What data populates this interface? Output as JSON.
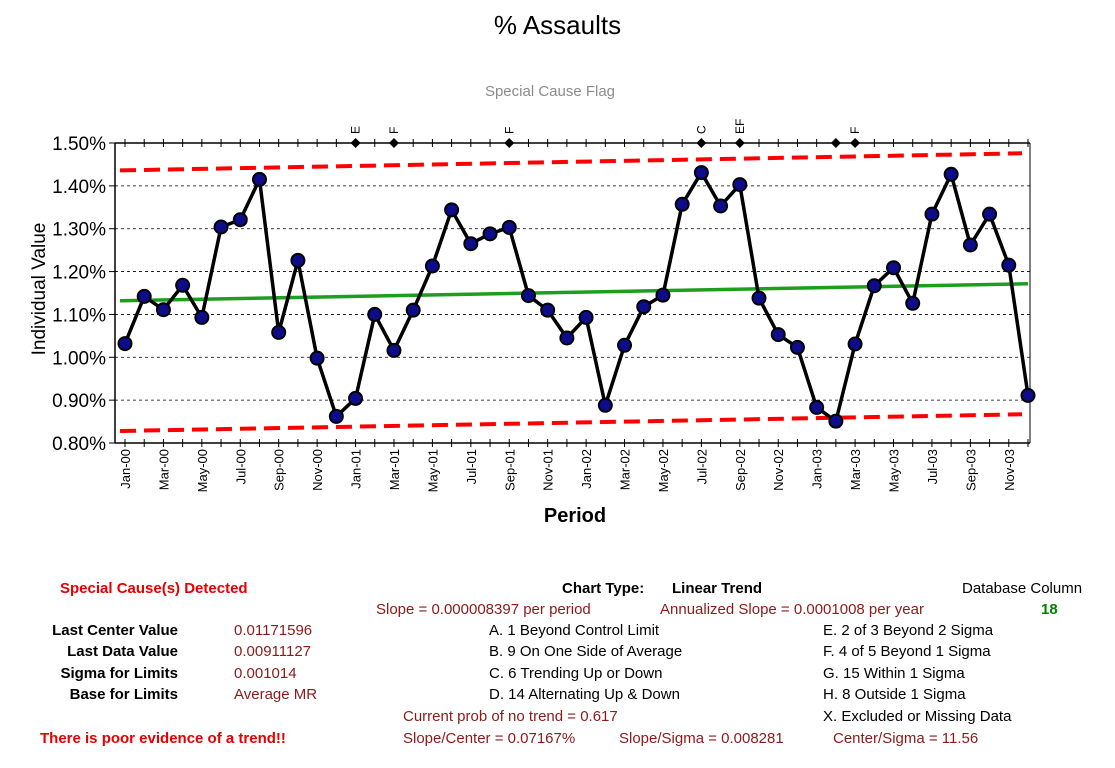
{
  "chart_data": {
    "type": "line",
    "title": "% Assaults",
    "subtitle": "Special Cause Flag",
    "xlabel": "Period",
    "ylabel": "Individual Value",
    "ylim": [
      0.008,
      0.015
    ],
    "yticks": [
      "0.80%",
      "0.90%",
      "1.00%",
      "1.10%",
      "1.20%",
      "1.30%",
      "1.40%",
      "1.50%"
    ],
    "y_tick_values": [
      0.008,
      0.009,
      0.01,
      0.011,
      0.012,
      0.013,
      0.014,
      0.015
    ],
    "x_tick_labels": [
      "Jan-00",
      "Mar-00",
      "May-00",
      "Jul-00",
      "Sep-00",
      "Nov-00",
      "Jan-01",
      "Mar-01",
      "May-01",
      "Jul-01",
      "Sep-01",
      "Nov-01",
      "Jan-02",
      "Mar-02",
      "May-02",
      "Jul-02",
      "Sep-02",
      "Nov-02",
      "Jan-03",
      "Mar-03",
      "May-03",
      "Jul-03",
      "Sep-03",
      "Nov-03"
    ],
    "grid": "horizontal dashed",
    "series": [
      {
        "name": "Individual Value",
        "color": "#000000",
        "marker_color": "#0d0d8c",
        "values": [
          0.01032,
          0.01142,
          0.01111,
          0.01168,
          0.01093,
          0.01304,
          0.01321,
          0.01415,
          0.01058,
          0.01226,
          0.00998,
          0.00862,
          0.00904,
          0.011,
          0.01016,
          0.0111,
          0.01213,
          0.01344,
          0.01265,
          0.01288,
          0.01303,
          0.01144,
          0.0111,
          0.01045,
          0.01093,
          0.00888,
          0.01028,
          0.01118,
          0.01145,
          0.01357,
          0.01431,
          0.01353,
          0.01403,
          0.01138,
          0.01053,
          0.01023,
          0.00883,
          0.00851,
          0.01031,
          0.01167,
          0.01209,
          0.01126,
          0.01334,
          0.01427,
          0.01262,
          0.01334,
          0.01215,
          0.00911
        ]
      },
      {
        "name": "Center Line",
        "color": "#1e9e1e",
        "start": 0.01132,
        "end": 0.01171596
      },
      {
        "name": "Upper Control Limit",
        "color": "#ff0000",
        "start": 0.01436,
        "end": 0.01476
      },
      {
        "name": "Lower Control Limit",
        "color": "#ff0000",
        "start": 0.00828,
        "end": 0.00867
      }
    ],
    "special_cause_flags": [
      {
        "index": 12,
        "label": "E"
      },
      {
        "index": 14,
        "label": "F"
      },
      {
        "index": 20,
        "label": "F"
      },
      {
        "index": 30,
        "label": "C"
      },
      {
        "index": 32,
        "label": "EF"
      },
      {
        "index": 37,
        "label": ""
      },
      {
        "index": 38,
        "label": "F"
      }
    ],
    "colors": {
      "accent_red": "#e60000",
      "dark_red": "#8b1a1a",
      "green": "#008000",
      "marker": "#0d0d8c"
    }
  },
  "panel": {
    "special_cause": "Special Cause(s) Detected",
    "chart_type_label": "Chart Type:",
    "chart_type_value": "Linear Trend",
    "db_column_label": "Database Column",
    "db_column_value": "18",
    "slope": "Slope = 0.000008397 per period",
    "annualized_slope": "Annualized Slope = 0.0001008 per year",
    "stats": [
      {
        "label": "Last Center Value",
        "value": "0.01171596"
      },
      {
        "label": "Last Data Value",
        "value": "0.00911127"
      },
      {
        "label": "Sigma for Limits",
        "value": "0.001014"
      },
      {
        "label": "Base for Limits",
        "value": "Average MR"
      }
    ],
    "rules_left": [
      "A.  1 Beyond Control Limit",
      "B.  9 On One Side of Average",
      "C.  6 Trending Up or Down",
      "D.  14 Alternating  Up & Down"
    ],
    "rules_right": [
      "E.  2 of 3 Beyond 2 Sigma",
      "F.  4 of 5 Beyond 1 Sigma",
      "G.  15 Within 1 Sigma",
      "H.  8 Outside 1 Sigma",
      "X.  Excluded or Missing Data"
    ],
    "prob_no_trend": "Current prob of no trend = 0.617",
    "trend_evidence": "There is poor evidence of a trend!!",
    "slope_center": "Slope/Center = 0.07167%",
    "slope_sigma": "Slope/Sigma = 0.008281",
    "center_sigma": "Center/Sigma = 11.56"
  }
}
